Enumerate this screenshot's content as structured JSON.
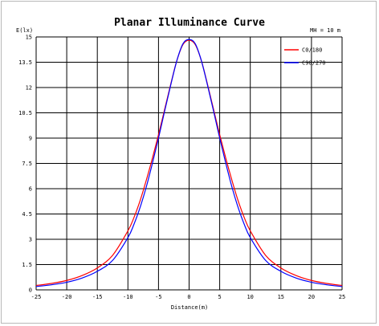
{
  "chart_data": {
    "type": "line",
    "title": "Planar Illuminance Curve",
    "ylabel": "E(lx)",
    "xlabel": "Distance(m)",
    "annotation": "MH = 10 m",
    "xlim": [
      -25,
      25
    ],
    "ylim": [
      0,
      15
    ],
    "x_ticks": [
      -25,
      -20,
      -15,
      -10,
      -5,
      0,
      5,
      10,
      15,
      20,
      25
    ],
    "y_ticks": [
      0,
      1.5,
      3,
      4.5,
      6,
      7.5,
      9,
      10.5,
      12,
      13.5,
      15
    ],
    "y_tick_labels": [
      "0",
      "1.5",
      "3",
      "4.5",
      "6",
      "7.5",
      "9",
      "10.5",
      "12",
      "13.5",
      "15"
    ],
    "grid": true,
    "legend_position": "top-right",
    "x": [
      -25,
      -22.5,
      -20,
      -17.5,
      -15,
      -12.5,
      -10,
      -9,
      -8,
      -7,
      -6,
      -5,
      -4,
      -3,
      -2,
      -1,
      0,
      1,
      2,
      3,
      4,
      5,
      6,
      7,
      8,
      9,
      10,
      12.5,
      15,
      17.5,
      20,
      22.5,
      25
    ],
    "series": [
      {
        "name": "C0/180",
        "color": "#ff0000",
        "values": [
          0.26,
          0.38,
          0.56,
          0.85,
          1.3,
          2.05,
          3.5,
          4.3,
          5.3,
          6.5,
          7.8,
          9.2,
          10.7,
          12.2,
          13.6,
          14.55,
          14.8,
          14.55,
          13.6,
          12.2,
          10.7,
          9.2,
          7.8,
          6.5,
          5.3,
          4.3,
          3.5,
          2.05,
          1.3,
          0.85,
          0.56,
          0.38,
          0.26
        ]
      },
      {
        "name": "C90/270",
        "color": "#0000ff",
        "values": [
          0.2,
          0.3,
          0.45,
          0.7,
          1.1,
          1.75,
          3.1,
          3.9,
          4.9,
          6.1,
          7.5,
          9.0,
          10.6,
          12.15,
          13.6,
          14.6,
          14.85,
          14.6,
          13.6,
          12.15,
          10.6,
          9.0,
          7.5,
          6.1,
          4.9,
          3.9,
          3.1,
          1.75,
          1.1,
          0.7,
          0.45,
          0.3,
          0.2
        ]
      }
    ]
  }
}
